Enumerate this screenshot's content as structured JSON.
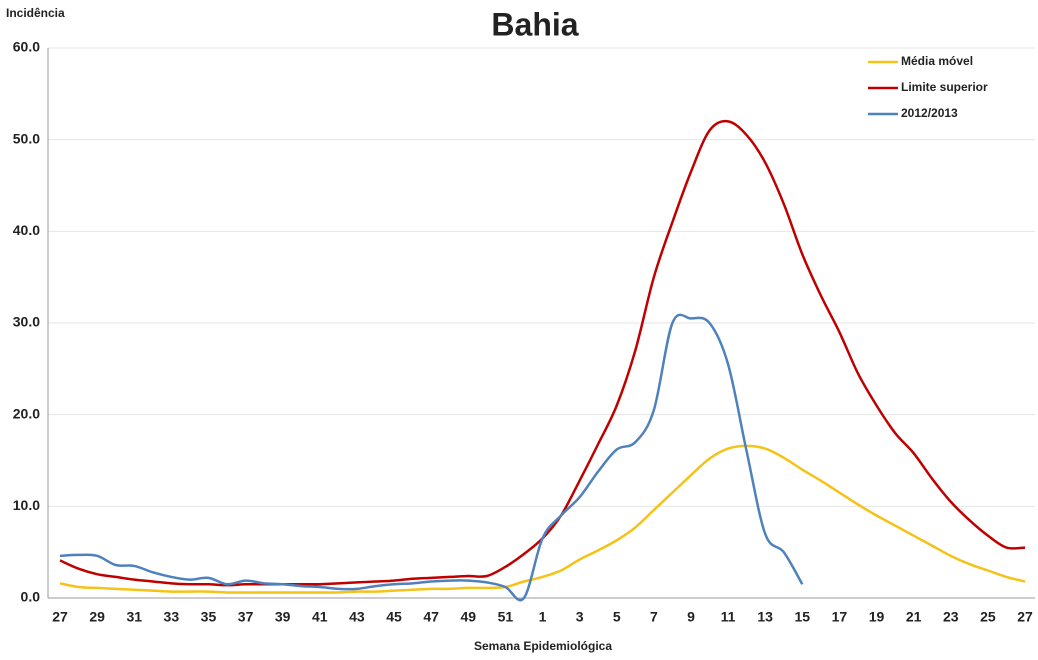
{
  "chart_data": {
    "type": "line",
    "title": "Bahia",
    "y_label": "Incidência",
    "x_label": "Semana Epidemiológica",
    "categories": [
      "27",
      null,
      "29",
      null,
      "31",
      null,
      "33",
      null,
      "35",
      null,
      "37",
      null,
      "39",
      null,
      "41",
      null,
      "43",
      null,
      "45",
      null,
      "47",
      null,
      "49",
      null,
      "51",
      null,
      "1",
      null,
      "3",
      null,
      "5",
      null,
      "7",
      null,
      "9",
      null,
      "11",
      null,
      "13",
      null,
      "15",
      null,
      "17",
      null,
      "19",
      null,
      "21",
      null,
      "23",
      null,
      "25",
      null,
      "27"
    ],
    "series": [
      {
        "name": "Média móvel",
        "color": "#f5c218",
        "values": [
          1.6,
          1.2,
          1.1,
          1.0,
          0.9,
          0.8,
          0.7,
          0.7,
          0.7,
          0.6,
          0.6,
          0.6,
          0.6,
          0.6,
          0.6,
          0.6,
          0.7,
          0.7,
          0.8,
          0.9,
          1.0,
          1.0,
          1.1,
          1.1,
          1.2,
          1.8,
          2.3,
          3.0,
          4.2,
          5.2,
          6.3,
          7.7,
          9.6,
          11.5,
          13.4,
          15.2,
          16.3,
          16.6,
          16.3,
          15.3,
          14.0,
          12.8,
          11.5,
          10.2,
          9.0,
          7.9,
          6.8,
          5.7,
          4.6,
          3.7,
          3.0,
          2.3,
          1.8
        ]
      },
      {
        "name": "Limite superior",
        "color": "#c00000",
        "values": [
          4.1,
          3.2,
          2.6,
          2.3,
          2.0,
          1.8,
          1.6,
          1.5,
          1.5,
          1.4,
          1.5,
          1.5,
          1.5,
          1.5,
          1.5,
          1.6,
          1.7,
          1.8,
          1.9,
          2.1,
          2.2,
          2.3,
          2.4,
          2.4,
          3.4,
          4.8,
          6.5,
          9.0,
          12.8,
          16.8,
          21.0,
          27.0,
          35.0,
          41.0,
          46.5,
          51.0,
          52.0,
          50.5,
          47.5,
          43.0,
          37.5,
          33.0,
          29.0,
          24.5,
          21.0,
          18.0,
          15.8,
          13.0,
          10.5,
          8.5,
          6.8,
          5.5,
          5.5
        ]
      },
      {
        "name": "2012/2013",
        "color": "#4f81bd",
        "values": [
          4.6,
          4.7,
          4.6,
          3.6,
          3.5,
          2.8,
          2.3,
          2.0,
          2.2,
          1.5,
          1.9,
          1.6,
          1.5,
          1.3,
          1.2,
          1.0,
          1.0,
          1.3,
          1.5,
          1.6,
          1.8,
          1.9,
          1.9,
          1.7,
          1.2,
          0.0,
          6.5,
          9.0,
          11.0,
          13.8,
          16.2,
          17.0,
          20.5,
          30.0,
          30.5,
          30.0,
          25.5,
          16.0,
          7.0,
          5.0,
          1.5,
          null,
          null,
          null,
          null,
          null,
          null,
          null,
          null,
          null,
          null,
          null,
          null
        ]
      }
    ],
    "ylim": [
      0,
      60
    ],
    "yticks": [
      {
        "value": 0,
        "label": "0.0"
      },
      {
        "value": 10,
        "label": "10.0"
      },
      {
        "value": 20,
        "label": "20.0"
      },
      {
        "value": 30,
        "label": "30.0"
      },
      {
        "value": 40,
        "label": "40.0"
      },
      {
        "value": 50,
        "label": "50.0"
      },
      {
        "value": 60,
        "label": "60.0"
      }
    ],
    "grid": true,
    "legend": "top-right"
  }
}
